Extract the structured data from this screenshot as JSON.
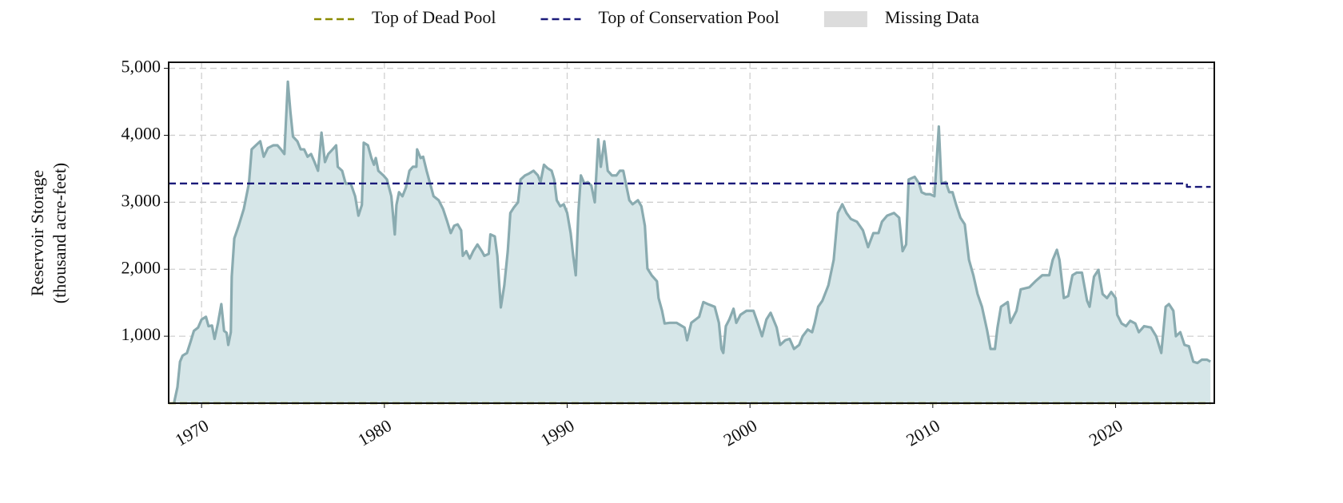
{
  "chart_data": {
    "type": "area",
    "ylabel": [
      "Reservoir Storage",
      "(thousand acre-feet)"
    ],
    "xlim": [
      1968.2,
      2025.4
    ],
    "xticks": [
      1970,
      1980,
      1990,
      2000,
      2010,
      2020
    ],
    "ylim": [
      0,
      5090
    ],
    "yticks": [
      {
        "value": 1000,
        "label": "1,000"
      },
      {
        "value": 2000,
        "label": "2,000"
      },
      {
        "value": 3000,
        "label": "3,000"
      },
      {
        "value": 4000,
        "label": "4,000"
      },
      {
        "value": 5000,
        "label": "5,000"
      }
    ],
    "grid": true,
    "legend": "top",
    "series": [
      {
        "color": "#8aabb0",
        "fill": "#d6e6e8",
        "x": [
          1968.49,
          1968.68,
          1968.82,
          1968.96,
          1969.2,
          1969.39,
          1969.58,
          1969.81,
          1970.0,
          1970.24,
          1970.38,
          1970.57,
          1970.71,
          1970.9,
          1971.08,
          1971.23,
          1971.37,
          1971.46,
          1971.6,
          1971.65,
          1971.79,
          1972.03,
          1972.31,
          1972.59,
          1972.74,
          1972.97,
          1973.21,
          1973.4,
          1973.63,
          1973.92,
          1974.15,
          1974.34,
          1974.53,
          1974.72,
          1974.86,
          1975.0,
          1975.24,
          1975.42,
          1975.61,
          1975.8,
          1975.99,
          1976.18,
          1976.37,
          1976.56,
          1976.75,
          1976.93,
          1977.17,
          1977.36,
          1977.45,
          1977.69,
          1977.88,
          1978.16,
          1978.4,
          1978.58,
          1978.77,
          1978.87,
          1979.1,
          1979.29,
          1979.43,
          1979.53,
          1979.67,
          1979.95,
          1980.14,
          1980.38,
          1980.57,
          1980.66,
          1980.8,
          1980.99,
          1981.18,
          1981.37,
          1981.56,
          1981.75,
          1981.79,
          1981.98,
          1982.12,
          1982.31,
          1982.5,
          1982.69,
          1982.97,
          1983.21,
          1983.44,
          1983.63,
          1983.82,
          1984.01,
          1984.2,
          1984.29,
          1984.48,
          1984.67,
          1984.86,
          1985.09,
          1985.33,
          1985.47,
          1985.71,
          1985.8,
          1986.04,
          1986.18,
          1986.37,
          1986.56,
          1986.75,
          1986.89,
          1987.08,
          1987.31,
          1987.45,
          1987.69,
          1987.92,
          1988.16,
          1988.4,
          1988.54,
          1988.73,
          1988.92,
          1989.15,
          1989.29,
          1989.43,
          1989.62,
          1989.81,
          1990.0,
          1990.19,
          1990.33,
          1990.47,
          1990.61,
          1990.75,
          1990.94,
          1991.13,
          1991.32,
          1991.51,
          1991.7,
          1991.84,
          1992.03,
          1992.22,
          1992.45,
          1992.69,
          1992.88,
          1993.07,
          1993.21,
          1993.4,
          1993.58,
          1993.87,
          1994.06,
          1994.25,
          1994.39,
          1994.62,
          1994.91,
          1995.0,
          1995.19,
          1995.33,
          1995.61,
          1995.99,
          1996.42,
          1996.56,
          1996.79,
          1997.03,
          1997.22,
          1997.45,
          1997.69,
          1998.07,
          1998.3,
          1998.44,
          1998.54,
          1998.68,
          1998.87,
          1999.1,
          1999.25,
          1999.48,
          1999.81,
          2000.19,
          2000.42,
          2000.66,
          2000.9,
          2001.13,
          2001.46,
          2001.65,
          2001.93,
          2002.17,
          2002.41,
          2002.69,
          2002.88,
          2003.16,
          2003.4,
          2003.54,
          2003.73,
          2003.96,
          2004.29,
          2004.58,
          2004.81,
          2005.05,
          2005.28,
          2005.52,
          2005.85,
          2006.18,
          2006.46,
          2006.75,
          2007.03,
          2007.22,
          2007.5,
          2007.88,
          2008.16,
          2008.35,
          2008.54,
          2008.68,
          2009.01,
          2009.25,
          2009.39,
          2009.62,
          2009.86,
          2010.09,
          2010.33,
          2010.47,
          2010.71,
          2010.9,
          2011.08,
          2011.27,
          2011.51,
          2011.75,
          2011.98,
          2012.22,
          2012.45,
          2012.69,
          2012.97,
          2013.16,
          2013.4,
          2013.54,
          2013.73,
          2014.1,
          2014.25,
          2014.58,
          2014.81,
          2015.28,
          2015.61,
          2015.99,
          2016.37,
          2016.56,
          2016.79,
          2016.93,
          2017.17,
          2017.41,
          2017.64,
          2017.88,
          2018.16,
          2018.44,
          2018.58,
          2018.82,
          2019.06,
          2019.29,
          2019.53,
          2019.76,
          2020.0,
          2020.09,
          2020.33,
          2020.57,
          2020.8,
          2021.08,
          2021.27,
          2021.56,
          2021.93,
          2022.22,
          2022.5,
          2022.74,
          2022.92,
          2023.16,
          2023.3,
          2023.54,
          2023.77,
          2024.01,
          2024.25,
          2024.48,
          2024.72,
          2025.0,
          2025.19
        ],
        "values": [
          0,
          240,
          620,
          710,
          750,
          910,
          1080,
          1130,
          1250,
          1290,
          1150,
          1160,
          960,
          1200,
          1480,
          1080,
          1050,
          870,
          1060,
          1890,
          2460,
          2650,
          2900,
          3280,
          3790,
          3850,
          3910,
          3680,
          3810,
          3850,
          3850,
          3790,
          3720,
          4800,
          4350,
          3980,
          3910,
          3790,
          3790,
          3680,
          3720,
          3600,
          3470,
          4040,
          3600,
          3720,
          3790,
          3850,
          3530,
          3470,
          3280,
          3280,
          3090,
          2800,
          2960,
          3890,
          3850,
          3660,
          3560,
          3660,
          3470,
          3400,
          3340,
          3090,
          2520,
          2960,
          3150,
          3090,
          3220,
          3470,
          3530,
          3530,
          3790,
          3660,
          3680,
          3470,
          3280,
          3090,
          3030,
          2900,
          2710,
          2540,
          2650,
          2670,
          2580,
          2200,
          2270,
          2160,
          2270,
          2370,
          2270,
          2200,
          2230,
          2520,
          2490,
          2200,
          1430,
          1760,
          2270,
          2840,
          2920,
          3000,
          3340,
          3400,
          3430,
          3470,
          3400,
          3300,
          3560,
          3510,
          3470,
          3340,
          3030,
          2940,
          2970,
          2840,
          2540,
          2200,
          1910,
          2840,
          3400,
          3280,
          3300,
          3250,
          3000,
          3940,
          3530,
          3910,
          3470,
          3400,
          3400,
          3470,
          3470,
          3280,
          3030,
          2970,
          3030,
          2940,
          2650,
          2010,
          1910,
          1820,
          1570,
          1380,
          1190,
          1200,
          1200,
          1130,
          940,
          1200,
          1250,
          1290,
          1510,
          1480,
          1440,
          1200,
          810,
          750,
          1150,
          1250,
          1410,
          1200,
          1320,
          1380,
          1380,
          1200,
          1000,
          1250,
          1350,
          1130,
          870,
          940,
          960,
          810,
          870,
          1000,
          1100,
          1060,
          1200,
          1440,
          1530,
          1760,
          2140,
          2840,
          2970,
          2840,
          2750,
          2710,
          2580,
          2330,
          2540,
          2540,
          2710,
          2800,
          2840,
          2770,
          2270,
          2370,
          3340,
          3380,
          3280,
          3150,
          3120,
          3120,
          3090,
          4130,
          3280,
          3300,
          3150,
          3150,
          2970,
          2770,
          2670,
          2140,
          1910,
          1630,
          1440,
          1090,
          810,
          810,
          1130,
          1440,
          1510,
          1200,
          1380,
          1700,
          1730,
          1820,
          1910,
          1910,
          2140,
          2290,
          2140,
          1570,
          1600,
          1910,
          1950,
          1950,
          1530,
          1440,
          1890,
          1990,
          1630,
          1570,
          1660,
          1570,
          1320,
          1190,
          1150,
          1230,
          1190,
          1060,
          1150,
          1130,
          1000,
          750,
          1440,
          1480,
          1380,
          1000,
          1060,
          870,
          850,
          620,
          600,
          650,
          650,
          620
        ]
      },
      {
        "name": "Top of Dead Pool",
        "color": "#8b8b00",
        "dash": true,
        "x": [
          1968.2,
          2025.2
        ],
        "values": [
          0,
          0
        ]
      },
      {
        "name": "Top of Conservation Pool",
        "color": "#1a1a7a",
        "dash": true,
        "x": [
          1968.2,
          2023.9,
          2023.9,
          2025.2
        ],
        "values": [
          3280,
          3280,
          3230,
          3230
        ]
      }
    ],
    "missing_data": {
      "name": "Missing Data",
      "color": "#dcdcdc"
    }
  }
}
